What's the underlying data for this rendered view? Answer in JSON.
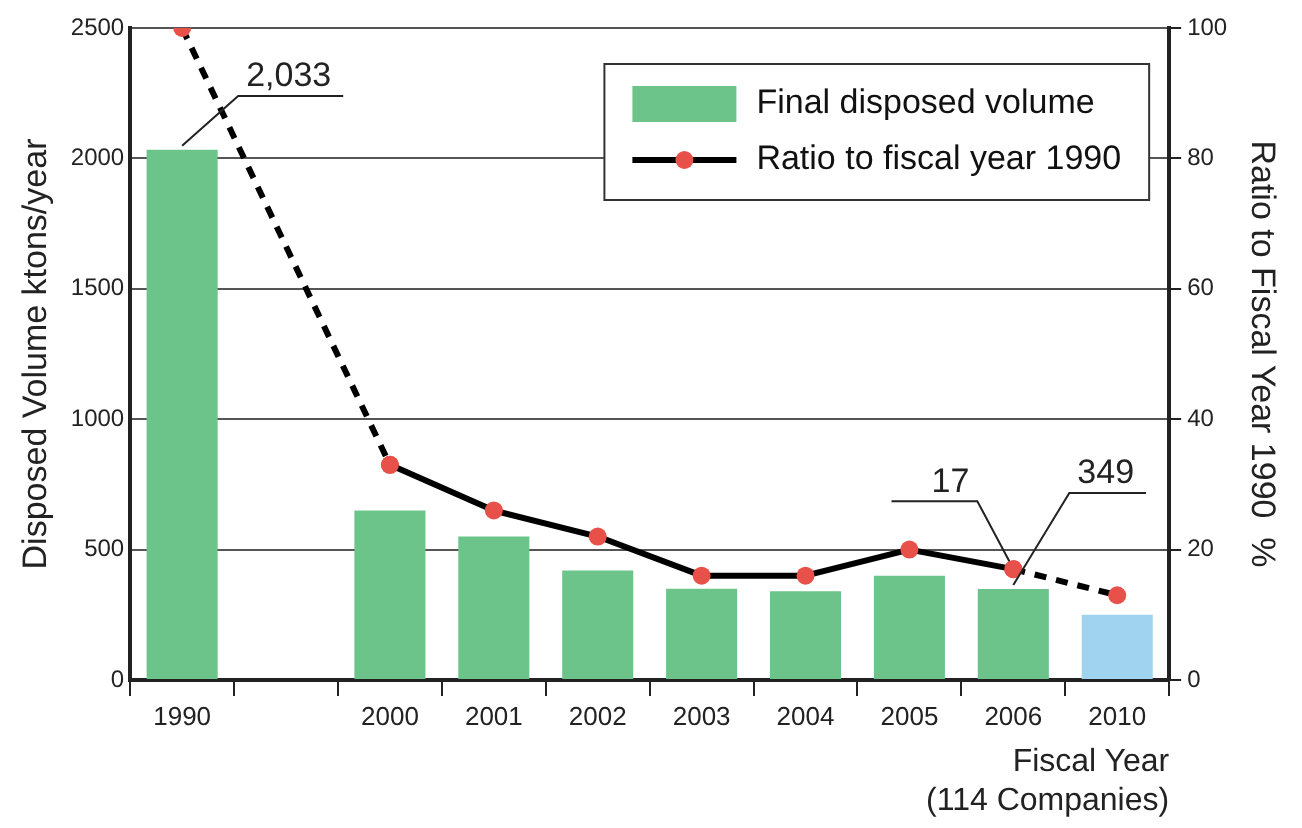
{
  "chart_data": {
    "type": "bar",
    "categories": [
      "1990",
      null,
      "2000",
      "2001",
      "2002",
      "2003",
      "2004",
      "2005",
      "2006",
      "2010"
    ],
    "xlabel": "Fiscal Year\n(114 Companies)",
    "ylabel": "Disposed Volume ktons/year",
    "y2label": "Ratio to Fiscal Year 1990  %",
    "series": [
      {
        "name": "Final disposed volume",
        "colors": [
          "#6cc48a",
          "#6cc48a",
          "#6cc48a",
          "#6cc48a",
          "#6cc48a",
          "#6cc48a",
          "#6cc48a",
          "#6cc48a",
          "#6cc48a",
          "#9fd3f0"
        ],
        "values": [
          2033,
          null,
          650,
          550,
          420,
          350,
          340,
          400,
          349,
          250
        ],
        "value_labels": [
          "2,033",
          null,
          null,
          null,
          null,
          null,
          null,
          null,
          "349",
          null
        ]
      },
      {
        "name": "Ratio to fiscal year 1990",
        "type": "line",
        "axis": "y2",
        "color": "#000000",
        "line_style": "solid",
        "marker": "circle",
        "values": [
          null,
          null,
          33,
          26,
          22,
          16,
          16,
          20,
          17,
          null
        ],
        "value_labels": [
          null,
          null,
          null,
          null,
          null,
          null,
          null,
          null,
          "17",
          null
        ]
      },
      {
        "type": "line",
        "axis": "y2",
        "color": "#000000",
        "line_style": "dashed",
        "marker": "circle",
        "values": [
          100,
          null,
          33,
          null,
          null,
          null,
          null,
          null,
          null,
          null
        ]
      },
      {
        "type": "line",
        "axis": "y2",
        "color": "#000000",
        "line_style": "dashed",
        "marker": "circle",
        "values": [
          null,
          null,
          null,
          null,
          null,
          null,
          null,
          null,
          17,
          13
        ]
      }
    ],
    "ylim": [
      0,
      2500
    ],
    "yticks": [
      0,
      500,
      1000,
      1500,
      2000,
      2500
    ],
    "y2lim": [
      0,
      100
    ],
    "y2ticks": [
      0,
      20,
      40,
      60,
      80,
      100
    ],
    "grid": "y",
    "legend": "top right"
  }
}
